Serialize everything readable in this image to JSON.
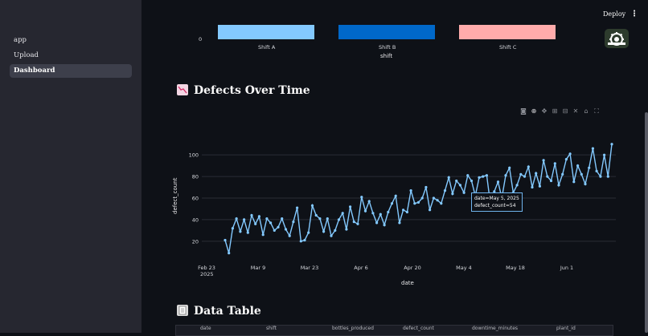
{
  "sidebar": {
    "items": [
      {
        "label": "app"
      },
      {
        "label": "Upload"
      },
      {
        "label": "Dashboard",
        "active": true
      }
    ]
  },
  "header": {
    "deploy_label": "Deploy",
    "menu_icon": "kebab-menu-icon"
  },
  "bar_chart": {
    "y_tick": "0",
    "categories": [
      "Shift A",
      "Shift B",
      "Shift C"
    ],
    "colors": [
      "#83c9ff",
      "#0068c9",
      "#ffabab"
    ],
    "xlabel": "shift"
  },
  "defects_section": {
    "title": "Defects Over Time",
    "emoji": "chart-decreasing-icon"
  },
  "line_chart": {
    "ylabel": "defect_count",
    "xlabel": "date",
    "y_ticks": [
      "20",
      "40",
      "60",
      "80",
      "100"
    ],
    "x_ticks": [
      "Feb 23",
      "Mar 9",
      "Mar 23",
      "Apr 6",
      "Apr 20",
      "May 4",
      "May 18",
      "Jun 1"
    ],
    "x_tick_year": "2025",
    "tooltip": {
      "line1": "date=May 5, 2025",
      "line2": "defect_count=54"
    }
  },
  "chart_data": [
    {
      "type": "bar",
      "categories": [
        "Shift A",
        "Shift B",
        "Shift C"
      ],
      "xlabel": "shift",
      "colors": [
        "#83c9ff",
        "#0068c9",
        "#ffabab"
      ]
    },
    {
      "type": "line",
      "xlabel": "date",
      "ylabel": "defect_count",
      "ylim": [
        5,
        115
      ],
      "x_start": "2025-02-26",
      "values": [
        21,
        9,
        32,
        41,
        29,
        40,
        28,
        44,
        36,
        43,
        26,
        41,
        37,
        30,
        33,
        41,
        31,
        25,
        38,
        51,
        20,
        21,
        28,
        53,
        44,
        41,
        29,
        41,
        25,
        30,
        40,
        46,
        31,
        52,
        38,
        36,
        61,
        48,
        57,
        46,
        37,
        45,
        35,
        47,
        55,
        62,
        37,
        49,
        47,
        67,
        55,
        56,
        60,
        70,
        49,
        60,
        58,
        55,
        67,
        79,
        64,
        76,
        72,
        65,
        81,
        76,
        62,
        79,
        80,
        81,
        54,
        66,
        75,
        60,
        81,
        88,
        65,
        72,
        82,
        80,
        89,
        70,
        83,
        71,
        95,
        80,
        76,
        92,
        72,
        82,
        96,
        101,
        75,
        90,
        82,
        73,
        88,
        106,
        85,
        80,
        100,
        80,
        110
      ]
    }
  ],
  "table_section": {
    "title": "Data Table",
    "emoji": "receipt-icon",
    "columns": [
      "date",
      "shift",
      "bottles_produced",
      "defect_count",
      "downtime_minutes",
      "plant_id"
    ]
  }
}
